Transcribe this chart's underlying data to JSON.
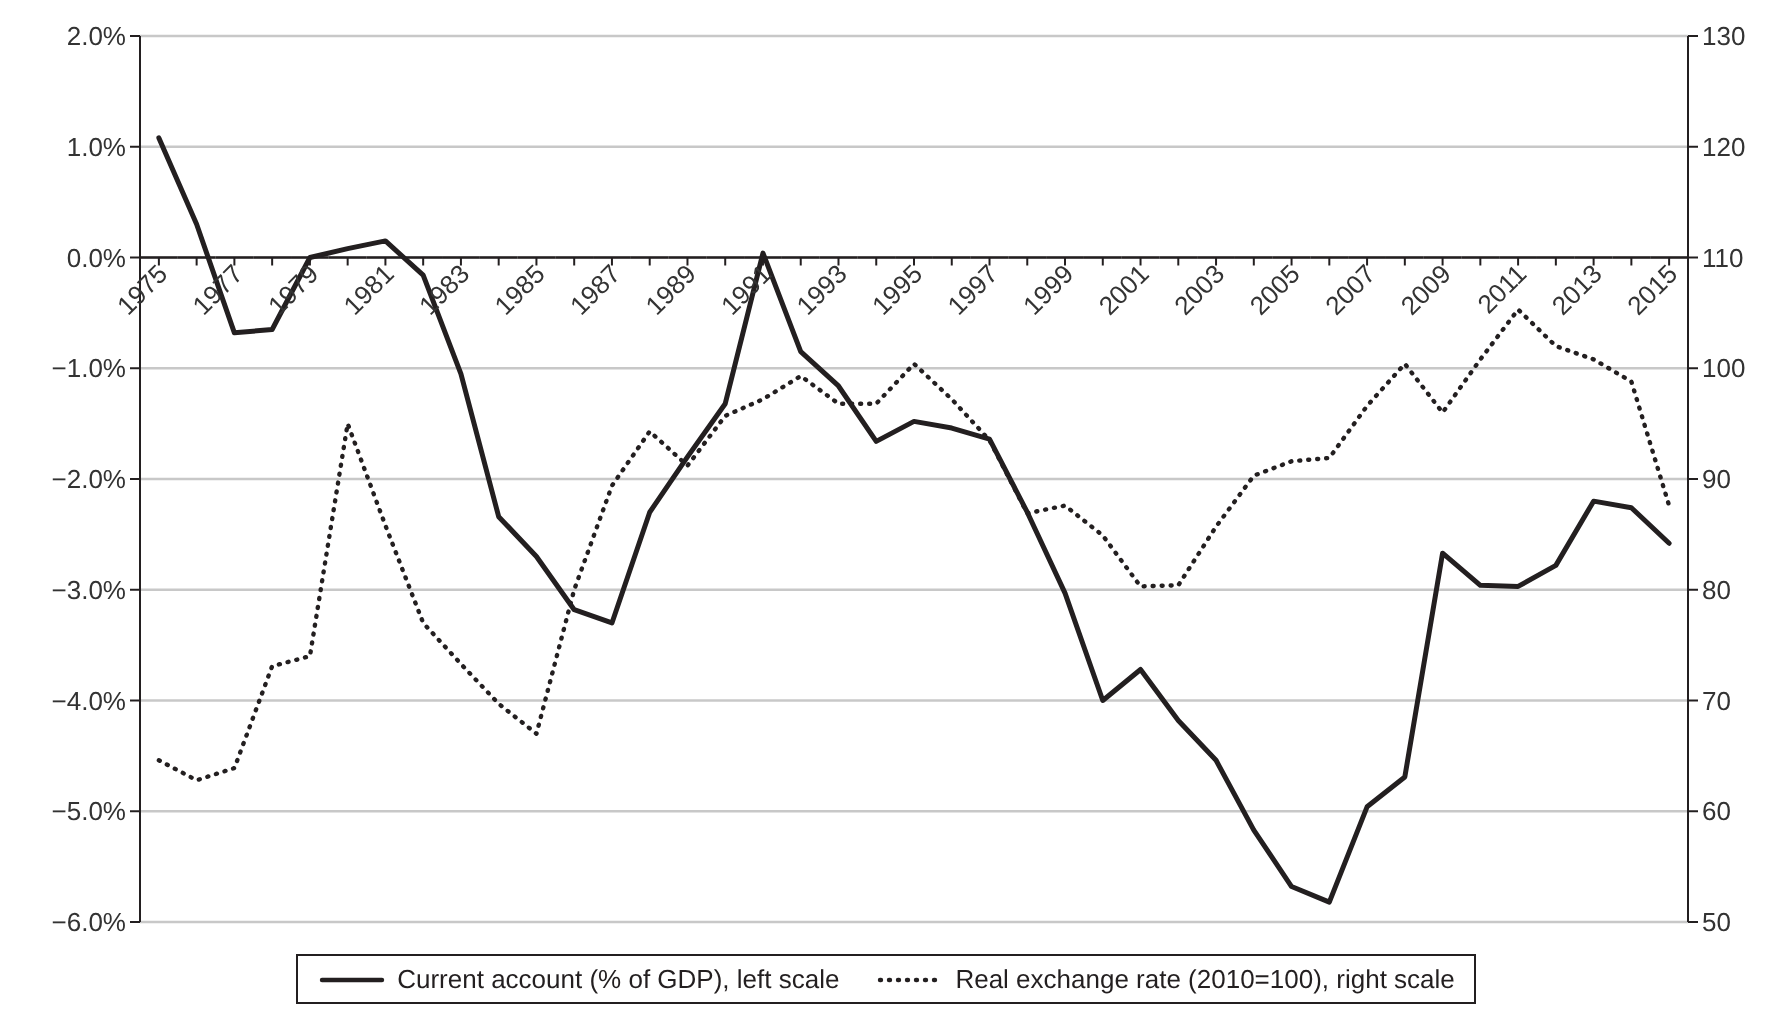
{
  "chart_data": {
    "type": "line",
    "categories": [
      "1975",
      null,
      "1977",
      null,
      "1979",
      null,
      "1981",
      null,
      "1983",
      null,
      "1985",
      null,
      "1987",
      null,
      "1989",
      null,
      "1991",
      null,
      "1993",
      null,
      "1995",
      null,
      "1997",
      null,
      "1999",
      null,
      "2001",
      null,
      "2003",
      null,
      "2005",
      null,
      "2007",
      null,
      "2009",
      null,
      "2011",
      null,
      "2013",
      null,
      "2015"
    ],
    "series": [
      {
        "name": "Current account (% of GDP), left scale",
        "color": "#231f20",
        "line_style": "solid",
        "values": [
          1.08,
          0.3,
          -0.68,
          -0.65,
          0.0,
          0.08,
          0.15,
          -0.16,
          -1.05,
          -2.34,
          -2.7,
          -3.18,
          -3.3,
          -2.3,
          -1.8,
          -1.32,
          0.04,
          -0.85,
          -1.16,
          -1.66,
          -1.48,
          -1.54,
          -1.64,
          -2.3,
          -3.03,
          -4.0,
          -3.72,
          -4.18,
          -4.54,
          -5.17,
          -5.68,
          -5.82,
          -4.96,
          -4.69,
          -2.67,
          -2.96,
          -2.97,
          -2.78,
          -2.2,
          -2.26,
          -2.58
        ]
      },
      {
        "name": "Real exchange rate (2010=100), right scale",
        "color": "#231f20",
        "line_style": "dotted",
        "axis": "y2",
        "values": [
          64.6,
          62.8,
          63.9,
          73.1,
          74.0,
          95.0,
          85.8,
          77.0,
          73.3,
          69.7,
          67.0,
          80.0,
          89.4,
          94.3,
          91.2,
          95.7,
          97.2,
          99.3,
          96.8,
          96.8,
          100.4,
          97.2,
          93.5,
          86.9,
          87.6,
          84.9,
          80.3,
          80.4,
          85.7,
          90.3,
          91.6,
          91.9,
          96.6,
          100.4,
          96.0,
          100.8,
          105.3,
          102.0,
          100.8,
          98.8,
          87.6
        ]
      }
    ],
    "ylim": [
      -6,
      2
    ],
    "yticks": [
      {
        "value": -6,
        "label": "−6.0%"
      },
      {
        "value": -5,
        "label": "−5.0%"
      },
      {
        "value": -4,
        "label": "−4.0%"
      },
      {
        "value": -3,
        "label": "−3.0%"
      },
      {
        "value": -2,
        "label": "−2.0%"
      },
      {
        "value": -1,
        "label": "−1.0%"
      },
      {
        "value": 0,
        "label": "0.0%"
      },
      {
        "value": 1,
        "label": "1.0%"
      },
      {
        "value": 2,
        "label": "2.0%"
      }
    ],
    "y2lim": [
      50,
      130
    ],
    "y2ticks": [
      50,
      60,
      70,
      80,
      90,
      100,
      110,
      120,
      130
    ],
    "grid": "y",
    "legend": "bottom",
    "marker": "none"
  }
}
